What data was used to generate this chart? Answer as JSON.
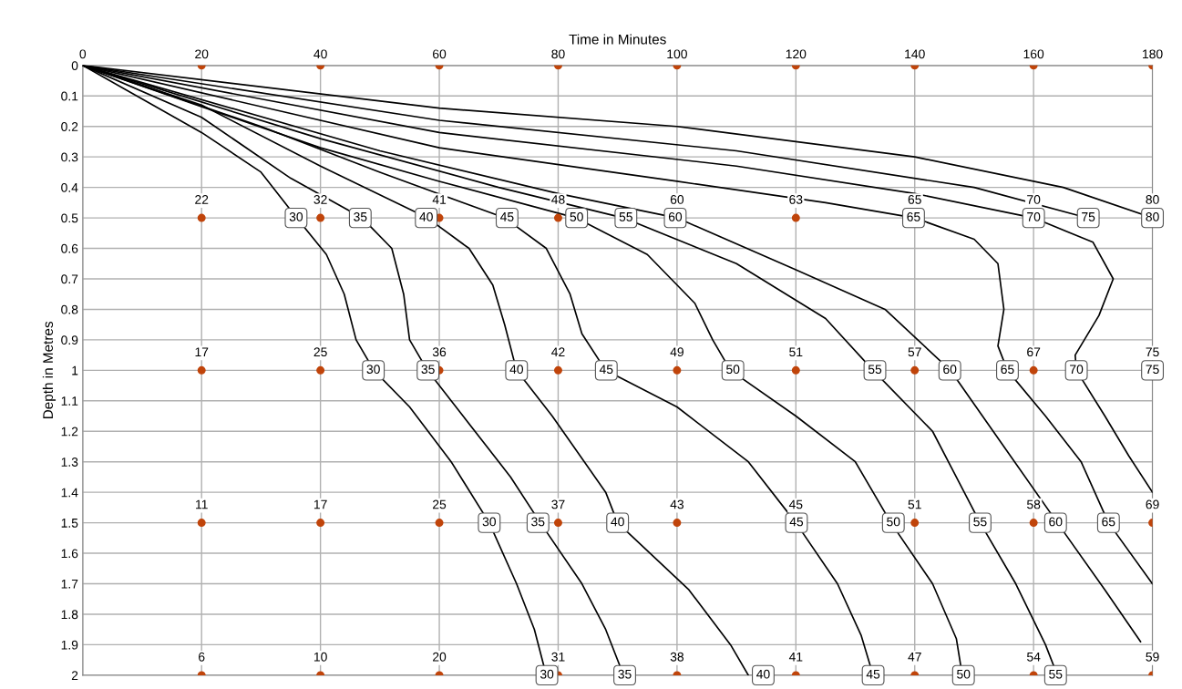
{
  "chart_data": {
    "type": "scatter",
    "xlabel": "Time in Minutes",
    "ylabel": "Depth in Metres",
    "xlim": [
      0,
      180
    ],
    "ylim": [
      2,
      0
    ],
    "xticks": [
      0,
      20,
      40,
      60,
      80,
      100,
      120,
      140,
      160,
      180
    ],
    "yticks": [
      0,
      0.1,
      0.2,
      0.3,
      0.4,
      0.5,
      0.6,
      0.7,
      0.8,
      0.9,
      1,
      1.1,
      1.2,
      1.3,
      1.4,
      1.5,
      1.6,
      1.7,
      1.8,
      1.9,
      2
    ],
    "grid": true,
    "series": [
      {
        "type": "line",
        "color": "#000000",
        "marker": "none",
        "x": [
          0,
          20,
          30,
          36,
          41,
          44,
          46,
          49,
          55,
          62,
          68.4,
          73,
          76,
          78
        ],
        "values": [
          0,
          0.22,
          0.35,
          0.5,
          0.62,
          0.75,
          0.9,
          1.0,
          1.12,
          1.3,
          1.5,
          1.7,
          1.85,
          2.0
        ]
      },
      {
        "type": "line",
        "color": "#000000",
        "marker": "none",
        "x": [
          0,
          20,
          35,
          47,
          52,
          54,
          55,
          58,
          64,
          72,
          77,
          84,
          88,
          91
        ],
        "values": [
          0,
          0.17,
          0.37,
          0.5,
          0.6,
          0.75,
          0.9,
          1.0,
          1.15,
          1.35,
          1.5,
          1.7,
          1.85,
          2.0
        ]
      },
      {
        "type": "line",
        "color": "#000000",
        "marker": "none",
        "x": [
          0,
          20,
          40,
          58,
          65,
          69,
          71,
          73,
          79,
          88,
          90,
          102,
          109,
          112
        ],
        "values": [
          0,
          0.13,
          0.33,
          0.5,
          0.6,
          0.72,
          0.85,
          1.0,
          1.15,
          1.4,
          1.5,
          1.72,
          1.9,
          2.0
        ]
      },
      {
        "type": "line",
        "color": "#000000",
        "marker": "none",
        "x": [
          0,
          30,
          50,
          71,
          78,
          82,
          84,
          88,
          100,
          112,
          120,
          127,
          131,
          133
        ],
        "values": [
          0,
          0.2,
          0.35,
          0.5,
          0.6,
          0.75,
          0.88,
          1.0,
          1.12,
          1.3,
          1.5,
          1.7,
          1.87,
          2.0
        ]
      },
      {
        "type": "line",
        "color": "#000000",
        "marker": "none",
        "x": [
          0,
          40,
          60,
          83,
          95,
          103,
          106,
          109,
          120,
          130,
          136,
          143,
          147,
          148
        ],
        "values": [
          0,
          0.27,
          0.38,
          0.5,
          0.62,
          0.78,
          0.9,
          1.0,
          1.15,
          1.3,
          1.5,
          1.7,
          1.88,
          2.0
        ]
      },
      {
        "type": "line",
        "color": "#000000",
        "marker": "none",
        "x": [
          0,
          40,
          70,
          91,
          110,
          125,
          133,
          143,
          151,
          157,
          162,
          164
        ],
        "values": [
          0,
          0.24,
          0.4,
          0.5,
          0.65,
          0.83,
          1.0,
          1.2,
          1.5,
          1.7,
          1.9,
          2.0
        ]
      },
      {
        "type": "line",
        "color": "#000000",
        "marker": "none",
        "x": [
          0,
          50,
          80,
          100,
          120,
          135,
          146,
          155,
          164,
          172,
          178
        ],
        "values": [
          0,
          0.28,
          0.42,
          0.5,
          0.67,
          0.8,
          1.0,
          1.25,
          1.5,
          1.72,
          1.89
        ]
      },
      {
        "type": "line",
        "color": "#000000",
        "marker": "none",
        "x": [
          0,
          60,
          100,
          125,
          140,
          150,
          154,
          155,
          154,
          155.6,
          162,
          168,
          172.6,
          180
        ],
        "values": [
          0,
          0.27,
          0.38,
          0.45,
          0.5,
          0.57,
          0.65,
          0.8,
          0.92,
          1.0,
          1.15,
          1.3,
          1.5,
          1.7
        ]
      },
      {
        "type": "line",
        "color": "#000000",
        "marker": "none",
        "x": [
          0,
          60,
          110,
          140,
          160,
          170,
          173.4,
          171,
          167,
          167.2,
          172,
          176,
          180
        ],
        "values": [
          0,
          0.22,
          0.33,
          0.42,
          0.5,
          0.58,
          0.7,
          0.82,
          0.95,
          1.0,
          1.15,
          1.28,
          1.4
        ]
      },
      {
        "type": "line",
        "color": "#000000",
        "marker": "none",
        "x": [
          0,
          60,
          110,
          150,
          169
        ],
        "values": [
          0,
          0.18,
          0.28,
          0.4,
          0.5
        ]
      },
      {
        "type": "line",
        "color": "#000000",
        "marker": "none",
        "x": [
          0,
          60,
          100,
          140,
          165,
          180
        ],
        "values": [
          0,
          0.14,
          0.2,
          0.3,
          0.4,
          0.5
        ]
      },
      {
        "color": "#c0440a",
        "marker": "circle",
        "x": [
          20,
          40,
          60,
          80,
          100,
          120,
          140,
          160,
          180,
          20,
          40,
          60,
          80,
          120,
          20,
          40,
          60,
          80,
          100,
          120,
          140,
          160,
          180,
          20,
          40,
          60,
          80,
          100,
          140,
          160,
          180,
          20,
          40,
          60,
          80,
          100,
          120,
          140,
          160,
          180
        ],
        "values": [
          0,
          0,
          0,
          0,
          0,
          0,
          0,
          0,
          0,
          0.5,
          0.5,
          0.5,
          0.5,
          0.5,
          1,
          1,
          1,
          1,
          1,
          1,
          1,
          1,
          1,
          1.5,
          1.5,
          1.5,
          1.5,
          1.5,
          1.5,
          1.5,
          1.5,
          2,
          2,
          2,
          2,
          2,
          2,
          2,
          2,
          2
        ]
      }
    ],
    "annotations": [
      {
        "text": "22",
        "x": 20,
        "y": 0.5
      },
      {
        "text": "32",
        "x": 40,
        "y": 0.5
      },
      {
        "text": "41",
        "x": 60,
        "y": 0.5
      },
      {
        "text": "48",
        "x": 80,
        "y": 0.5
      },
      {
        "text": "60",
        "x": 100,
        "y": 0.5
      },
      {
        "text": "63",
        "x": 120,
        "y": 0.5
      },
      {
        "text": "65",
        "x": 140,
        "y": 0.5
      },
      {
        "text": "70",
        "x": 160,
        "y": 0.5
      },
      {
        "text": "80",
        "x": 180,
        "y": 0.5
      },
      {
        "text": "17",
        "x": 20,
        "y": 1
      },
      {
        "text": "25",
        "x": 40,
        "y": 1
      },
      {
        "text": "36",
        "x": 60,
        "y": 1
      },
      {
        "text": "42",
        "x": 80,
        "y": 1
      },
      {
        "text": "49",
        "x": 100,
        "y": 1
      },
      {
        "text": "51",
        "x": 120,
        "y": 1
      },
      {
        "text": "57",
        "x": 140,
        "y": 1
      },
      {
        "text": "67",
        "x": 160,
        "y": 1
      },
      {
        "text": "75",
        "x": 180,
        "y": 1
      },
      {
        "text": "11",
        "x": 20,
        "y": 1.5
      },
      {
        "text": "17",
        "x": 40,
        "y": 1.5
      },
      {
        "text": "25",
        "x": 60,
        "y": 1.5
      },
      {
        "text": "37",
        "x": 80,
        "y": 1.5
      },
      {
        "text": "43",
        "x": 100,
        "y": 1.5
      },
      {
        "text": "45",
        "x": 120,
        "y": 1.5
      },
      {
        "text": "51",
        "x": 140,
        "y": 1.5
      },
      {
        "text": "58",
        "x": 160,
        "y": 1.5
      },
      {
        "text": "69",
        "x": 180,
        "y": 1.5
      },
      {
        "text": "6",
        "x": 20,
        "y": 2
      },
      {
        "text": "10",
        "x": 40,
        "y": 2
      },
      {
        "text": "20",
        "x": 60,
        "y": 2
      },
      {
        "text": "31",
        "x": 80,
        "y": 2
      },
      {
        "text": "38",
        "x": 100,
        "y": 2
      },
      {
        "text": "41",
        "x": 120,
        "y": 2
      },
      {
        "text": "47",
        "x": 140,
        "y": 2
      },
      {
        "text": "54",
        "x": 160,
        "y": 2
      },
      {
        "text": "59",
        "x": 180,
        "y": 2
      },
      {
        "text": "30",
        "x": 35.9,
        "y": 0.5
      },
      {
        "text": "35",
        "x": 46.7,
        "y": 0.5
      },
      {
        "text": "40",
        "x": 57.8,
        "y": 0.5
      },
      {
        "text": "45",
        "x": 71.4,
        "y": 0.5
      },
      {
        "text": "50",
        "x": 83.1,
        "y": 0.5
      },
      {
        "text": "55",
        "x": 91.4,
        "y": 0.5
      },
      {
        "text": "60",
        "x": 99.7,
        "y": 0.5
      },
      {
        "text": "65",
        "x": 139.8,
        "y": 0.5
      },
      {
        "text": "70",
        "x": 160,
        "y": 0.5
      },
      {
        "text": "75",
        "x": 169.2,
        "y": 0.5
      },
      {
        "text": "80",
        "x": 180,
        "y": 0.5
      },
      {
        "text": "30",
        "x": 48.9,
        "y": 1
      },
      {
        "text": "35",
        "x": 58.1,
        "y": 1
      },
      {
        "text": "40",
        "x": 73,
        "y": 1
      },
      {
        "text": "45",
        "x": 88.1,
        "y": 1
      },
      {
        "text": "50",
        "x": 109.4,
        "y": 1
      },
      {
        "text": "55",
        "x": 133.3,
        "y": 1
      },
      {
        "text": "60",
        "x": 145.9,
        "y": 1
      },
      {
        "text": "65",
        "x": 155.6,
        "y": 1
      },
      {
        "text": "70",
        "x": 167.2,
        "y": 1
      },
      {
        "text": "75",
        "x": 180,
        "y": 1
      },
      {
        "text": "30",
        "x": 68.4,
        "y": 1.5
      },
      {
        "text": "35",
        "x": 76.6,
        "y": 1.5
      },
      {
        "text": "40",
        "x": 90,
        "y": 1.5
      },
      {
        "text": "45",
        "x": 120.1,
        "y": 1.5
      },
      {
        "text": "50",
        "x": 136.4,
        "y": 1.5
      },
      {
        "text": "55",
        "x": 151,
        "y": 1.5
      },
      {
        "text": "60",
        "x": 163.7,
        "y": 1.5
      },
      {
        "text": "65",
        "x": 172.6,
        "y": 1.5
      },
      {
        "text": "30",
        "x": 78.1,
        "y": 2
      },
      {
        "text": "35",
        "x": 91.2,
        "y": 2
      },
      {
        "text": "40",
        "x": 114.5,
        "y": 2
      },
      {
        "text": "45",
        "x": 133,
        "y": 2
      },
      {
        "text": "50",
        "x": 148.2,
        "y": 2
      },
      {
        "text": "55",
        "x": 163.7,
        "y": 2
      }
    ]
  }
}
